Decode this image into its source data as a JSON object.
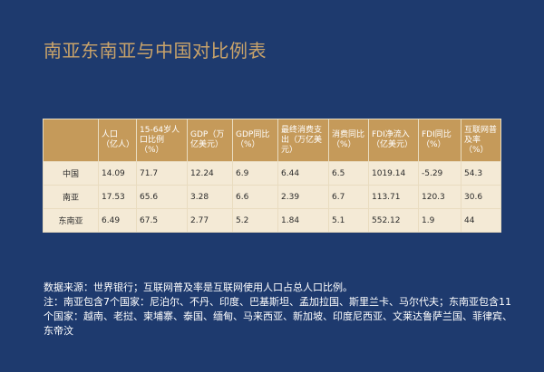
{
  "title": "南亚东南亚与中国对比例表",
  "table": {
    "headers": [
      "",
      "人口（亿人）",
      "15-64岁人口比例（%）",
      "GDP（万亿美元）",
      "GDP同比（%）",
      "最终消费支出（万亿美元）",
      "消费同比（%）",
      "FDI净流入（亿美元）",
      "FDI同比（%）",
      "互联网普及率（%）"
    ],
    "rows": [
      [
        "中国",
        "14.09",
        "71.7",
        "12.24",
        "6.9",
        "6.44",
        "6.5",
        "1019.14",
        "-5.29",
        "54.3"
      ],
      [
        "南亚",
        "17.53",
        "65.6",
        "3.28",
        "6.6",
        "2.39",
        "6.7",
        "113.71",
        "120.3",
        "30.6"
      ],
      [
        "东南亚",
        "6.49",
        "67.5",
        "2.77",
        "5.2",
        "1.84",
        "5.1",
        "552.12",
        "1.9",
        "44"
      ]
    ]
  },
  "notes": {
    "source": "数据来源：世界银行；互联网普及率是互联网使用人口占总人口比例。",
    "note": "注：南亚包含7个国家：尼泊尔、不丹、印度、巴基斯坦、孟加拉国、斯里兰卡、马尔代夫；东南亚包含11个国家：越南、老挝、柬埔寨、泰国、缅甸、马来西亚、新加坡、印度尼西亚、文莱达鲁萨兰国、菲律宾、东帝汶"
  }
}
